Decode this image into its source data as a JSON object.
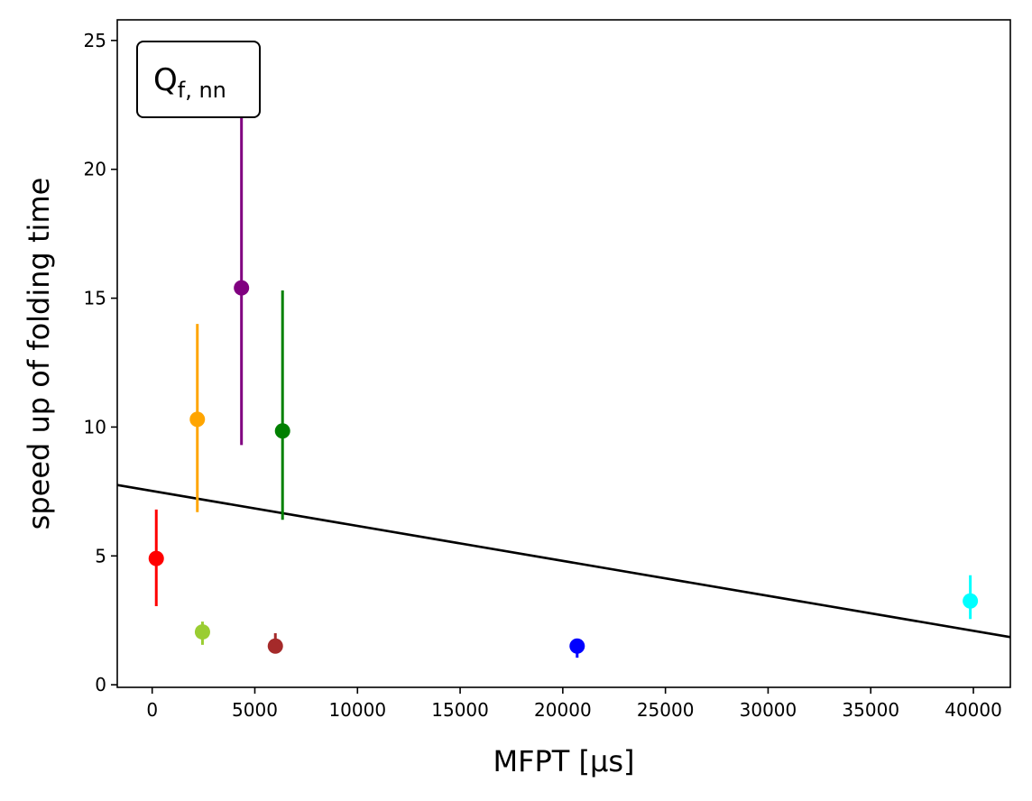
{
  "chart_data": {
    "type": "scatter",
    "title": "",
    "xlabel": "MFPT [μs]",
    "ylabel": "speed up of folding time",
    "xlim": [
      -1700,
      41800
    ],
    "ylim": [
      -0.1,
      25.8
    ],
    "xticks": [
      0,
      5000,
      10000,
      15000,
      20000,
      25000,
      30000,
      35000,
      40000
    ],
    "yticks": [
      0,
      5,
      10,
      15,
      20,
      25
    ],
    "grid": false,
    "legend": "none",
    "annotation": {
      "main": "Q",
      "sub": "f, nn",
      "placement": "top-left"
    },
    "points": [
      {
        "x": 200,
        "y": 4.9,
        "err_low": 3.05,
        "err_high": 6.8,
        "color": "#ff0000"
      },
      {
        "x": 2200,
        "y": 10.3,
        "err_low": 6.7,
        "err_high": 14.0,
        "color": "#ffa500"
      },
      {
        "x": 2450,
        "y": 2.05,
        "err_low": 1.55,
        "err_high": 2.45,
        "color": "#9acd32"
      },
      {
        "x": 4350,
        "y": 15.4,
        "err_low": 9.3,
        "err_high": 22.0,
        "color": "#800080"
      },
      {
        "x": 6000,
        "y": 1.5,
        "err_low": 1.45,
        "err_high": 2.0,
        "color": "#a52a2a"
      },
      {
        "x": 6350,
        "y": 9.85,
        "err_low": 6.4,
        "err_high": 15.3,
        "color": "#008000"
      },
      {
        "x": 20700,
        "y": 1.5,
        "err_low": 1.05,
        "err_high": 1.65,
        "color": "#0000ff"
      },
      {
        "x": 39850,
        "y": 3.25,
        "err_low": 2.55,
        "err_high": 4.25,
        "color": "#00ffff"
      }
    ],
    "fit_line": {
      "x": [
        -1700,
        41800
      ],
      "y": [
        7.75,
        1.85
      ],
      "color": "#000000"
    }
  }
}
